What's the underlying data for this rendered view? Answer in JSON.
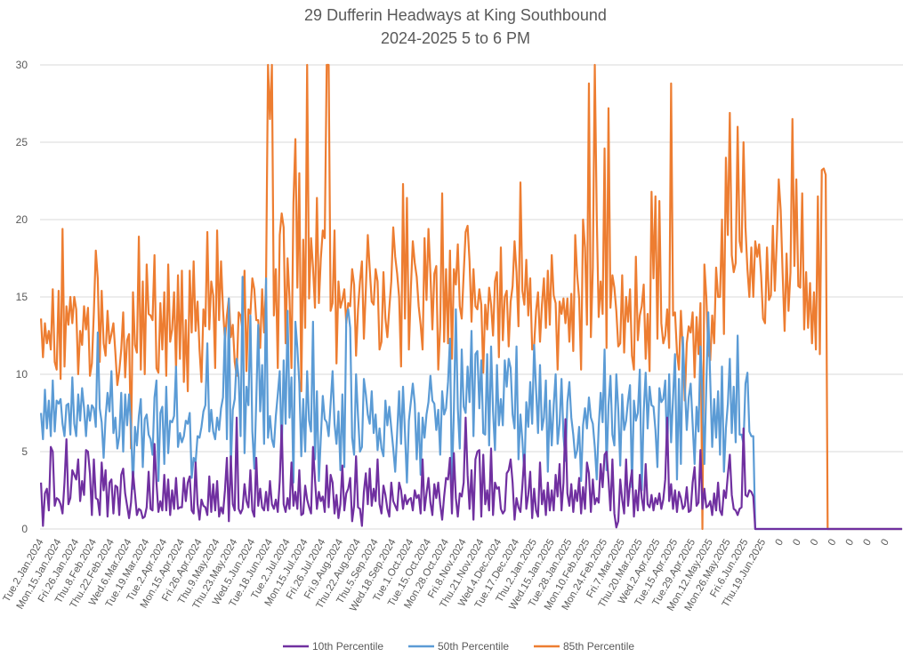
{
  "chart_data": {
    "type": "line",
    "title": "29 Dufferin Headways at King Southbound",
    "subtitle": "2024-2025 5 to 6 PM",
    "xlabel": "",
    "ylabel": "",
    "ylim": [
      0,
      30
    ],
    "yticks": [
      0,
      5,
      10,
      15,
      20,
      25,
      30
    ],
    "grid": true,
    "legend_position": "bottom",
    "points_per_label": 9,
    "xtick_labels": [
      "Tue.2.Jan.2024",
      "Mon.15.Jan.2024",
      "Fri.26.Jan.2024",
      "Thu.8.Feb.2024",
      "Thu.22.Feb.2024",
      "Wed.6.Mar.2024",
      "Tue.19.Mar.2024",
      "Tue.2.Apr.2024",
      "Mon.15.Apr.2024",
      "Fri.26.Apr.2024",
      "Thu.9.May.2024",
      "Thu.23.May.2024",
      "Wed.5.Jun.2024",
      "Tue.18.Jun.2024",
      "Tue.2.Jul.2024",
      "Mon.15.Jul.2024",
      "Fri.26.Jul.2024",
      "Fri.9.Aug.2024",
      "Thu.22.Aug.2024",
      "Thu.5.Sep.2024",
      "Wed.18.Sep.2024",
      "Tue.1.Oct.2024",
      "Tue.15.Oct.2024",
      "Mon.28.Oct.2024",
      "Fri.8.Nov.2024",
      "Thu.21.Nov.2024",
      "Wed.4.Dec.2024",
      "Tue.17.Dec.2024",
      "Thu.2.Jan.2025",
      "Wed.15.Jan.2025",
      "Tue.28.Jan.2025",
      "Mon.10.Feb.2025",
      "Mon.24.Feb.2025",
      "Fri.7.Mar.2025",
      "Thu.20.Mar.2025",
      "Wed.2.Apr.2025",
      "Tue.15.Apr.2025",
      "Tue.29.Apr.2025",
      "Mon.12.May.2025",
      "Mon.26.May.2025",
      "Fri.6.Jun.2025",
      "Thu.19.Jun.2025",
      "0",
      "0",
      "0",
      "0",
      "0",
      "0",
      "0"
    ],
    "series": [
      {
        "name": "10th Percentile",
        "color": "#7030A0",
        "values": [
          3.0,
          0.2,
          2.3,
          2.6,
          1.2,
          5.3,
          5.0,
          1.5,
          2.0,
          1.9,
          1.6,
          1.0,
          3.0,
          5.8,
          1.6,
          2.0,
          3.8,
          3.5,
          3.2,
          4.5,
          1.8,
          3.1,
          2.2,
          5.1,
          5.0,
          3.6,
          0.9,
          4.5,
          2.0,
          1.9,
          0.9,
          4.3,
          2.5,
          3.8,
          0.8,
          3.0,
          3.2,
          1.0,
          2.8,
          2.7,
          0.9,
          3.5,
          3.9,
          2.3,
          1.5,
          0.7,
          1.7,
          3.7,
          2.3,
          0.9,
          1.3,
          1.2,
          0.7,
          0.8,
          1.4,
          3.7,
          1.3,
          1.2,
          5.5,
          3.0,
          1.1,
          1.8,
          1.2,
          3.5,
          1.2,
          3.2,
          0.9,
          2.5,
          1.3,
          3.3,
          1.3,
          1.4,
          1.4,
          3.3,
          1.8,
          3.0,
          3.4,
          1.2,
          1.0,
          4.3,
          1.6,
          0.6,
          1.9,
          1.5,
          1.4,
          0.9,
          3.4,
          1.1,
          2.9,
          1.2,
          3.1,
          0.8,
          1.4,
          1.0,
          2.5,
          4.6,
          0.5,
          4.7,
          1.6,
          1.2,
          7.2,
          1.3,
          1.0,
          1.3,
          2.9,
          1.8,
          1.4,
          3.8,
          1.2,
          0.8,
          4.6,
          1.5,
          2.6,
          1.4,
          1.2,
          2.4,
          1.2,
          3.1,
          1.6,
          1.3,
          1.9,
          1.1,
          3.1,
          6.7,
          1.6,
          1.1,
          2.0,
          1.3,
          4.3,
          1.5,
          2.4,
          1.3,
          3.8,
          0.9,
          1.0,
          2.8,
          1.9,
          1.4,
          1.0,
          5.3,
          3.2,
          1.3,
          2.4,
          1.8,
          2.1,
          1.1,
          4.1,
          1.4,
          3.5,
          3.0,
          1.0,
          2.2,
          0.7,
          1.6,
          4.1,
          1.2,
          2.3,
          2.6,
          3.3,
          0.5,
          1.5,
          4.7,
          1.4,
          1.3,
          0.2,
          2.4,
          3.6,
          1.6,
          3.9,
          1.5,
          2.6,
          1.8,
          4.5,
          1.6,
          1.0,
          2.8,
          2.2,
          1.3,
          0.8,
          3.0,
          1.8,
          1.5,
          1.2,
          3.0,
          2.5,
          1.3,
          2.2,
          1.6,
          1.9,
          2.0,
          1.2,
          2.5,
          2.0,
          2.2,
          1.0,
          4.5,
          1.2,
          2.3,
          3.3,
          1.7,
          0.9,
          2.9,
          2.0,
          3.0,
          1.6,
          0.6,
          2.1,
          3.3,
          3.2,
          4.6,
          1.0,
          4.9,
          2.0,
          0.8,
          2.3,
          2.1,
          3.0,
          7.2,
          3.5,
          1.3,
          3.8,
          0.6,
          4.5,
          5.0,
          5.1,
          0.8,
          4.8,
          1.6,
          2.5,
          1.2,
          5.2,
          0.9,
          3.0,
          2.6,
          2.7,
          1.3,
          1.0,
          1.2,
          3.6,
          3.8,
          4.5,
          3.0,
          0.6,
          2.0,
          1.4,
          1.1,
          2.8,
          4.8,
          1.3,
          2.2,
          3.7,
          0.7,
          2.6,
          1.2,
          0.8,
          4.3,
          1.6,
          2.5,
          0.9,
          3.0,
          1.2,
          2.5,
          1.2,
          3.5,
          2.1,
          4.2,
          1.2,
          3.0,
          7.1,
          2.3,
          1.5,
          2.9,
          1.1,
          2.5,
          1.8,
          3.3,
          1.0,
          2.7,
          1.3,
          4.3,
          3.6,
          1.1,
          3.2,
          1.6,
          2.0,
          1.7,
          4.2,
          2.7,
          4.8,
          5.0,
          3.2,
          1.2,
          4.5,
          1.0,
          0.1,
          0.5,
          3.2,
          1.9,
          1.0,
          4.5,
          1.5,
          2.9,
          3.8,
          0.8,
          2.5,
          1.2,
          3.5,
          2.0,
          1.2,
          4.2,
          1.6,
          1.4,
          2.2,
          1.2,
          2.0,
          1.6,
          2.3,
          1.3,
          1.9,
          3.2,
          7.2,
          1.8,
          2.9,
          1.3,
          2.5,
          1.1,
          2.4,
          2.0,
          1.3,
          1.5,
          2.7,
          1.1,
          1.2,
          3.0,
          4.0,
          1.5,
          1.7,
          5.1,
          1.3,
          2.6,
          1.4,
          1.5,
          1.8,
          0.9,
          2.3,
          1.2,
          3.0,
          1.2,
          0.9,
          2.5,
          2.0,
          3.5,
          4.8,
          2.2,
          1.3,
          1.2,
          0.9,
          1.3,
          1.4,
          6.5,
          2.2,
          2.1,
          2.5,
          2.4,
          2.1
        ]
      },
      {
        "name": "50th Percentile",
        "color": "#5B9BD5",
        "values": [
          7.5,
          5.8,
          9.0,
          6.5,
          8.3,
          6.0,
          9.6,
          6.3,
          8.3,
          8.1,
          8.4,
          6.8,
          6.0,
          8.0,
          8.1,
          6.1,
          9.8,
          6.8,
          6.0,
          8.7,
          7.0,
          9.1,
          7.8,
          6.0,
          8.0,
          7.0,
          8.0,
          7.8,
          6.6,
          12.7,
          7.8,
          6.9,
          4.6,
          7.2,
          8.8,
          7.6,
          10.2,
          6.2,
          7.2,
          5.2,
          6.0,
          8.8,
          5.0,
          8.7,
          6.7,
          8.7,
          6.6,
          2.6,
          6.6,
          5.4,
          7.3,
          8.4,
          4.0,
          7.1,
          7.4,
          6.1,
          5.8,
          4.8,
          8.5,
          9.6,
          3.1,
          7.5,
          7.9,
          4.2,
          9.2,
          4.9,
          7.0,
          6.9,
          7.3,
          10.5,
          5.3,
          6.2,
          5.6,
          6.0,
          7.0,
          6.8,
          7.5,
          3.3,
          4.6,
          4.3,
          6.0,
          5.9,
          6.6,
          7.6,
          8.0,
          12.0,
          6.3,
          7.7,
          6.3,
          5.8,
          7.2,
          6.4,
          7.8,
          8.5,
          13.0,
          5.8,
          14.9,
          4.0,
          7.7,
          8.4,
          11.0,
          9.8,
          6.0,
          16.3,
          4.9,
          9.2,
          8.0,
          13.8,
          6.3,
          3.9,
          8.3,
          13.2,
          7.6,
          10.6,
          5.5,
          16.2,
          5.9,
          7.3,
          5.8,
          5.3,
          7.3,
          8.7,
          10.2,
          4.8,
          10.9,
          6.8,
          14.1,
          7.2,
          9.8,
          3.0,
          13.4,
          11.7,
          9.4,
          4.7,
          8.4,
          5.0,
          10.2,
          7.0,
          6.3,
          13.4,
          4.5,
          8.9,
          3.1,
          5.9,
          8.6,
          7.1,
          6.9,
          6.0,
          8.1,
          10.2,
          6.8,
          5.5,
          7.6,
          3.8,
          8.7,
          4.0,
          13.6,
          14.2,
          13.0,
          5.9,
          4.8,
          10.0,
          7.3,
          5.0,
          5.3,
          9.7,
          8.7,
          7.4,
          6.8,
          8.9,
          6.2,
          7.4,
          5.1,
          6.5,
          5.2,
          4.7,
          8.3,
          6.7,
          7.9,
          6.5,
          5.2,
          3.7,
          6.2,
          8.9,
          5.5,
          9.2,
          6.2,
          3.0,
          7.0,
          8.2,
          9.4,
          8.1,
          4.5,
          7.5,
          3.5,
          7.2,
          5.9,
          7.4,
          8.2,
          9.9,
          8.3,
          8.1,
          6.4,
          7.7,
          4.8,
          8.9,
          7.4,
          7.8,
          9.5,
          12.3,
          3.0,
          7.7,
          14.2,
          7.8,
          5.2,
          11.6,
          7.9,
          7.5,
          10.5,
          8.2,
          12.8,
          6.0,
          11.3,
          11.5,
          7.8,
          10.9,
          6.2,
          6.1,
          11.3,
          5.4,
          11.8,
          7.6,
          5.1,
          10.6,
          6.7,
          8.4,
          6.7,
          10.9,
          9.2,
          11.0,
          10.4,
          7.4,
          6.5,
          11.8,
          4.5,
          7.4,
          5.7,
          3.5,
          8.2,
          6.6,
          9.5,
          6.8,
          11.9,
          9.0,
          6.2,
          10.6,
          6.4,
          7.2,
          9.6,
          3.7,
          8.3,
          5.4,
          8.0,
          10.0,
          5.5,
          6.8,
          9.7,
          6.0,
          4.4,
          8.2,
          9.5,
          7.2,
          6.1,
          4.6,
          5.1,
          6.6,
          3.1,
          6.7,
          7.8,
          6.5,
          8.5,
          7.2,
          6.8,
          5.3,
          3.2,
          6.6,
          8.8,
          6.9,
          11.6,
          3.8,
          8.0,
          9.9,
          6.1,
          5.4,
          10.0,
          7.7,
          4.1,
          8.7,
          6.4,
          7.0,
          8.3,
          9.3,
          2.7,
          8.3,
          7.0,
          7.5,
          10.3,
          2.5,
          7.6,
          10.1,
          6.5,
          9.2,
          8.0,
          7.9,
          6.4,
          4.0,
          9.1,
          8.2,
          8.4,
          9.6,
          4.8,
          10.0,
          5.6,
          8.5,
          11.3,
          3.2,
          9.7,
          4.2,
          12.4,
          9.2,
          6.4,
          8.5,
          9.4,
          6.8,
          4.2,
          7.9,
          6.3,
          11.8,
          8.7,
          4.2,
          9.3,
          14.0,
          9.6,
          5.3,
          8.4,
          5.9,
          8.9,
          4.8,
          10.5,
          3.7,
          6.5,
          8.1,
          11.0,
          6.2,
          9.2,
          5.6,
          12.5,
          6.1,
          6.1,
          5.5,
          9.4,
          10.1,
          6.3,
          6.0,
          6.0
        ]
      },
      {
        "name": "85th Percentile",
        "color": "#ED7D31",
        "values": [
          13.6,
          11.1,
          13.3,
          12.0,
          12.8,
          11.6,
          15.5,
          10.8,
          10.3,
          15.4,
          9.7,
          19.4,
          10.5,
          14.4,
          13.2,
          15.0,
          13.3,
          15.0,
          14.2,
          10.0,
          12.8,
          11.9,
          14.4,
          12.9,
          14.3,
          9.9,
          10.7,
          14.0,
          18.0,
          16.2,
          10.8,
          15.4,
          12.0,
          11.2,
          14.1,
          12.0,
          12.6,
          13.3,
          11.4,
          9.3,
          10.2,
          11.6,
          14.0,
          9.8,
          12.2,
          12.6,
          5.2,
          15.3,
          11.9,
          11.4,
          18.9,
          10.3,
          16.0,
          10.0,
          17.1,
          13.9,
          13.8,
          13.5,
          17.7,
          10.4,
          10.1,
          14.6,
          11.6,
          15.3,
          9.9,
          17.1,
          12.1,
          12.9,
          15.3,
          10.3,
          16.4,
          11.0,
          16.7,
          9.5,
          13.5,
          8.9,
          16.7,
          12.7,
          17.3,
          12.8,
          14.7,
          11.6,
          9.5,
          14.2,
          13.1,
          19.2,
          12.9,
          16.0,
          15.1,
          10.4,
          19.3,
          13.5,
          17.3,
          14.2,
          12.2,
          13.8,
          14.9,
          12.4,
          13.2,
          10.8,
          9.9,
          14.0,
          13.8,
          12.8,
          16.7,
          10.2,
          14.2,
          13.9,
          16.2,
          15.5,
          13.5,
          13.5,
          11.7,
          15.5,
          12.7,
          15.9,
          30.0,
          26.5,
          30.0,
          13.8,
          16.8,
          10.4,
          19.0,
          20.4,
          19.5,
          12.0,
          17.5,
          14.9,
          10.4,
          21.1,
          25.2,
          15.6,
          23.0,
          8.9,
          18.7,
          13.0,
          30.0,
          14.9,
          18.8,
          16.9,
          14.3,
          21.4,
          14.6,
          17.5,
          19.3,
          18.8,
          30.0,
          30.0,
          14.1,
          14.6,
          19.3,
          10.7,
          16.0,
          14.3,
          14.8,
          15.5,
          13.3,
          14.6,
          14.4,
          16.8,
          15.8,
          11.2,
          14.2,
          16.0,
          17.3,
          12.3,
          15.5,
          19.0,
          16.8,
          14.7,
          14.5,
          16.8,
          16.0,
          11.6,
          12.1,
          16.6,
          13.6,
          12.4,
          14.3,
          16.0,
          19.5,
          17.6,
          16.5,
          15.0,
          10.5,
          22.3,
          13.6,
          21.4,
          11.6,
          15.5,
          18.6,
          17.2,
          16.3,
          14.4,
          13.2,
          11.6,
          18.8,
          14.8,
          19.4,
          16.5,
          12.9,
          16.5,
          17.0,
          10.3,
          13.1,
          21.7,
          12.1,
          16.8,
          12.0,
          18.0,
          11.0,
          16.8,
          15.8,
          18.4,
          14.4,
          13.6,
          16.5,
          19.2,
          19.6,
          17.3,
          13.4,
          16.8,
          14.4,
          14.2,
          15.5,
          14.5,
          10.1,
          14.5,
          12.9,
          15.6,
          14.5,
          12.5,
          16.0,
          16.6,
          11.1,
          18.2,
          12.2,
          15.0,
          15.4,
          11.8,
          14.7,
          15.7,
          18.6,
          16.6,
          13.1,
          22.4,
          15.4,
          14.5,
          17.4,
          13.8,
          16.2,
          11.6,
          11.9,
          14.1,
          15.3,
          12.1,
          14.5,
          16.2,
          13.0,
          16.7,
          13.2,
          17.7,
          15.1,
          14.6,
          10.3,
          14.7,
          13.9,
          14.9,
          13.3,
          14.9,
          12.1,
          15.2,
          11.5,
          19.0,
          16.4,
          14.9,
          10.3,
          20.0,
          18.2,
          13.2,
          28.8,
          12.4,
          16.9,
          30.0,
          20.2,
          13.7,
          16.0,
          13.9,
          24.6,
          11.7,
          27.2,
          14.3,
          16.4,
          15.6,
          14.1,
          11.8,
          12.0,
          16.4,
          11.4,
          15.0,
          13.4,
          15.5,
          11.2,
          10.3,
          17.6,
          12.2,
          13.8,
          14.4,
          15.8,
          11.0,
          13.9,
          10.2,
          21.8,
          16.2,
          21.5,
          12.3,
          21.2,
          13.3,
          12.0,
          12.5,
          14.2,
          11.7,
          28.8,
          13.8,
          14.0,
          11.4,
          10.3,
          14.1,
          11.5,
          8.3,
          12.0,
          13.1,
          12.7,
          14.0,
          9.8,
          13.7,
          11.3,
          14.6,
          0.0,
          17.1,
          15.0,
          11.4,
          10.9,
          13.8,
          12.0,
          16.9,
          15.0,
          15.0,
          20.0,
          12.6,
          24.0,
          19.0,
          26.9,
          17.7,
          16.6,
          17.2,
          26.0,
          18.6,
          17.9,
          25.0,
          19.5,
          16.8,
          15.0,
          18.2,
          15.0,
          18.6,
          17.6,
          18.4,
          16.4,
          13.6,
          13.3,
          18.2,
          14.8,
          15.1,
          19.6,
          15.4,
          18.6,
          22.6,
          20.6,
          16.5,
          12.8,
          17.8,
          14.1,
          16.6,
          26.5,
          17.0,
          22.6,
          15.7,
          15.6,
          21.7,
          12.9,
          16.6,
          13.0,
          15.9,
          12.0,
          15.3,
          11.6,
          21.5,
          11.3,
          23.2,
          23.3,
          22.9,
          0.0
        ]
      }
    ]
  },
  "legend": {
    "items": [
      "10th Percentile",
      "50th Percentile",
      "85th Percentile"
    ]
  }
}
